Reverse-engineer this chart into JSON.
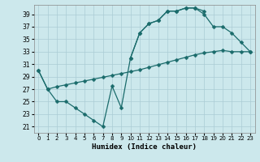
{
  "xlabel": "Humidex (Indice chaleur)",
  "bg_color": "#cce8ec",
  "grid_color": "#aaccd4",
  "line_color": "#1a6b6b",
  "xlim": [
    -0.5,
    23.5
  ],
  "ylim": [
    20.0,
    40.5
  ],
  "yticks": [
    21,
    23,
    25,
    27,
    29,
    31,
    33,
    35,
    37,
    39
  ],
  "xticks": [
    0,
    1,
    2,
    3,
    4,
    5,
    6,
    7,
    8,
    9,
    10,
    11,
    12,
    13,
    14,
    15,
    16,
    17,
    18,
    19,
    20,
    21,
    22,
    23
  ],
  "line1_x": [
    0,
    1,
    2,
    3,
    4,
    5,
    6,
    7,
    8,
    9,
    10,
    11,
    12,
    13,
    14,
    15,
    16,
    17,
    18
  ],
  "line1_y": [
    30,
    27,
    25,
    25,
    24,
    23,
    22,
    21,
    27.5,
    24,
    32,
    36,
    37.5,
    38,
    39.5,
    39.5,
    40,
    40,
    39.5
  ],
  "line2_x": [
    10,
    11,
    12,
    13,
    14,
    15,
    16,
    17,
    18,
    19,
    20,
    21,
    22,
    23
  ],
  "line2_y": [
    32,
    36,
    37.5,
    38,
    39.5,
    39.5,
    40,
    40,
    39,
    37,
    37,
    36,
    34.5,
    33
  ],
  "line3_x": [
    0,
    1,
    2,
    3,
    4,
    5,
    6,
    7,
    8,
    9,
    10,
    11,
    12,
    13,
    14,
    15,
    16,
    17,
    18,
    19,
    20,
    21,
    22,
    23
  ],
  "line3_y": [
    30,
    27,
    27.4,
    27.7,
    28.0,
    28.3,
    28.6,
    28.9,
    29.2,
    29.5,
    29.8,
    30.1,
    30.5,
    30.9,
    31.3,
    31.7,
    32.1,
    32.5,
    32.8,
    33.0,
    33.2,
    33.0,
    33.0,
    33.0
  ],
  "marker_size": 2.5,
  "line_width": 0.9,
  "tick_fontsize": 5.5,
  "xlabel_fontsize": 6.5
}
